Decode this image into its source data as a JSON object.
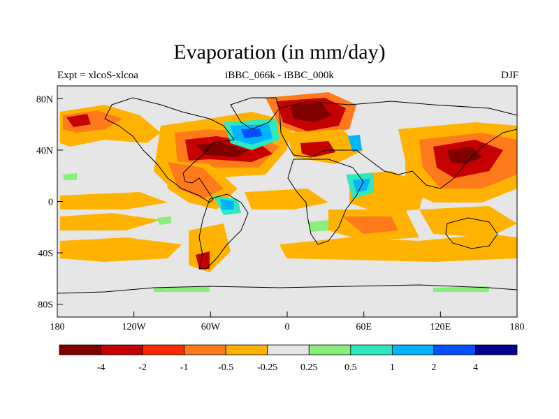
{
  "map": {
    "title": "Evaporation (in mm/day)",
    "experiment": "Expt = xlcoS-xlcoa",
    "comparison": "iBBC_066k - iBBC_000k",
    "season": "DJF",
    "lat_ticks": [
      {
        "label": "80N",
        "lat": 80
      },
      {
        "label": "40N",
        "lat": 40
      },
      {
        "label": "0",
        "lat": 0
      },
      {
        "label": "40S",
        "lat": -40
      },
      {
        "label": "80S",
        "lat": -80
      }
    ],
    "lon_ticks": [
      {
        "label": "180",
        "lon": -180
      },
      {
        "label": "120W",
        "lon": -120
      },
      {
        "label": "60W",
        "lon": -60
      },
      {
        "label": "0",
        "lon": 0
      },
      {
        "label": "60E",
        "lon": 60
      },
      {
        "label": "120E",
        "lon": 120
      },
      {
        "label": "180",
        "lon": 180
      }
    ],
    "colorbar": {
      "colors": [
        "#800000",
        "#c60000",
        "#ff2a00",
        "#ff7a1a",
        "#ffb300",
        "#e6e6e6",
        "#88f07a",
        "#2ee8c0",
        "#00b4ff",
        "#0050ff",
        "#000090"
      ],
      "labels": [
        "-4",
        "-2",
        "-1",
        "-0.5",
        "-0.25",
        "0.25",
        "0.5",
        "1",
        "2",
        "4"
      ]
    },
    "background_color": "#e6e6e6"
  }
}
